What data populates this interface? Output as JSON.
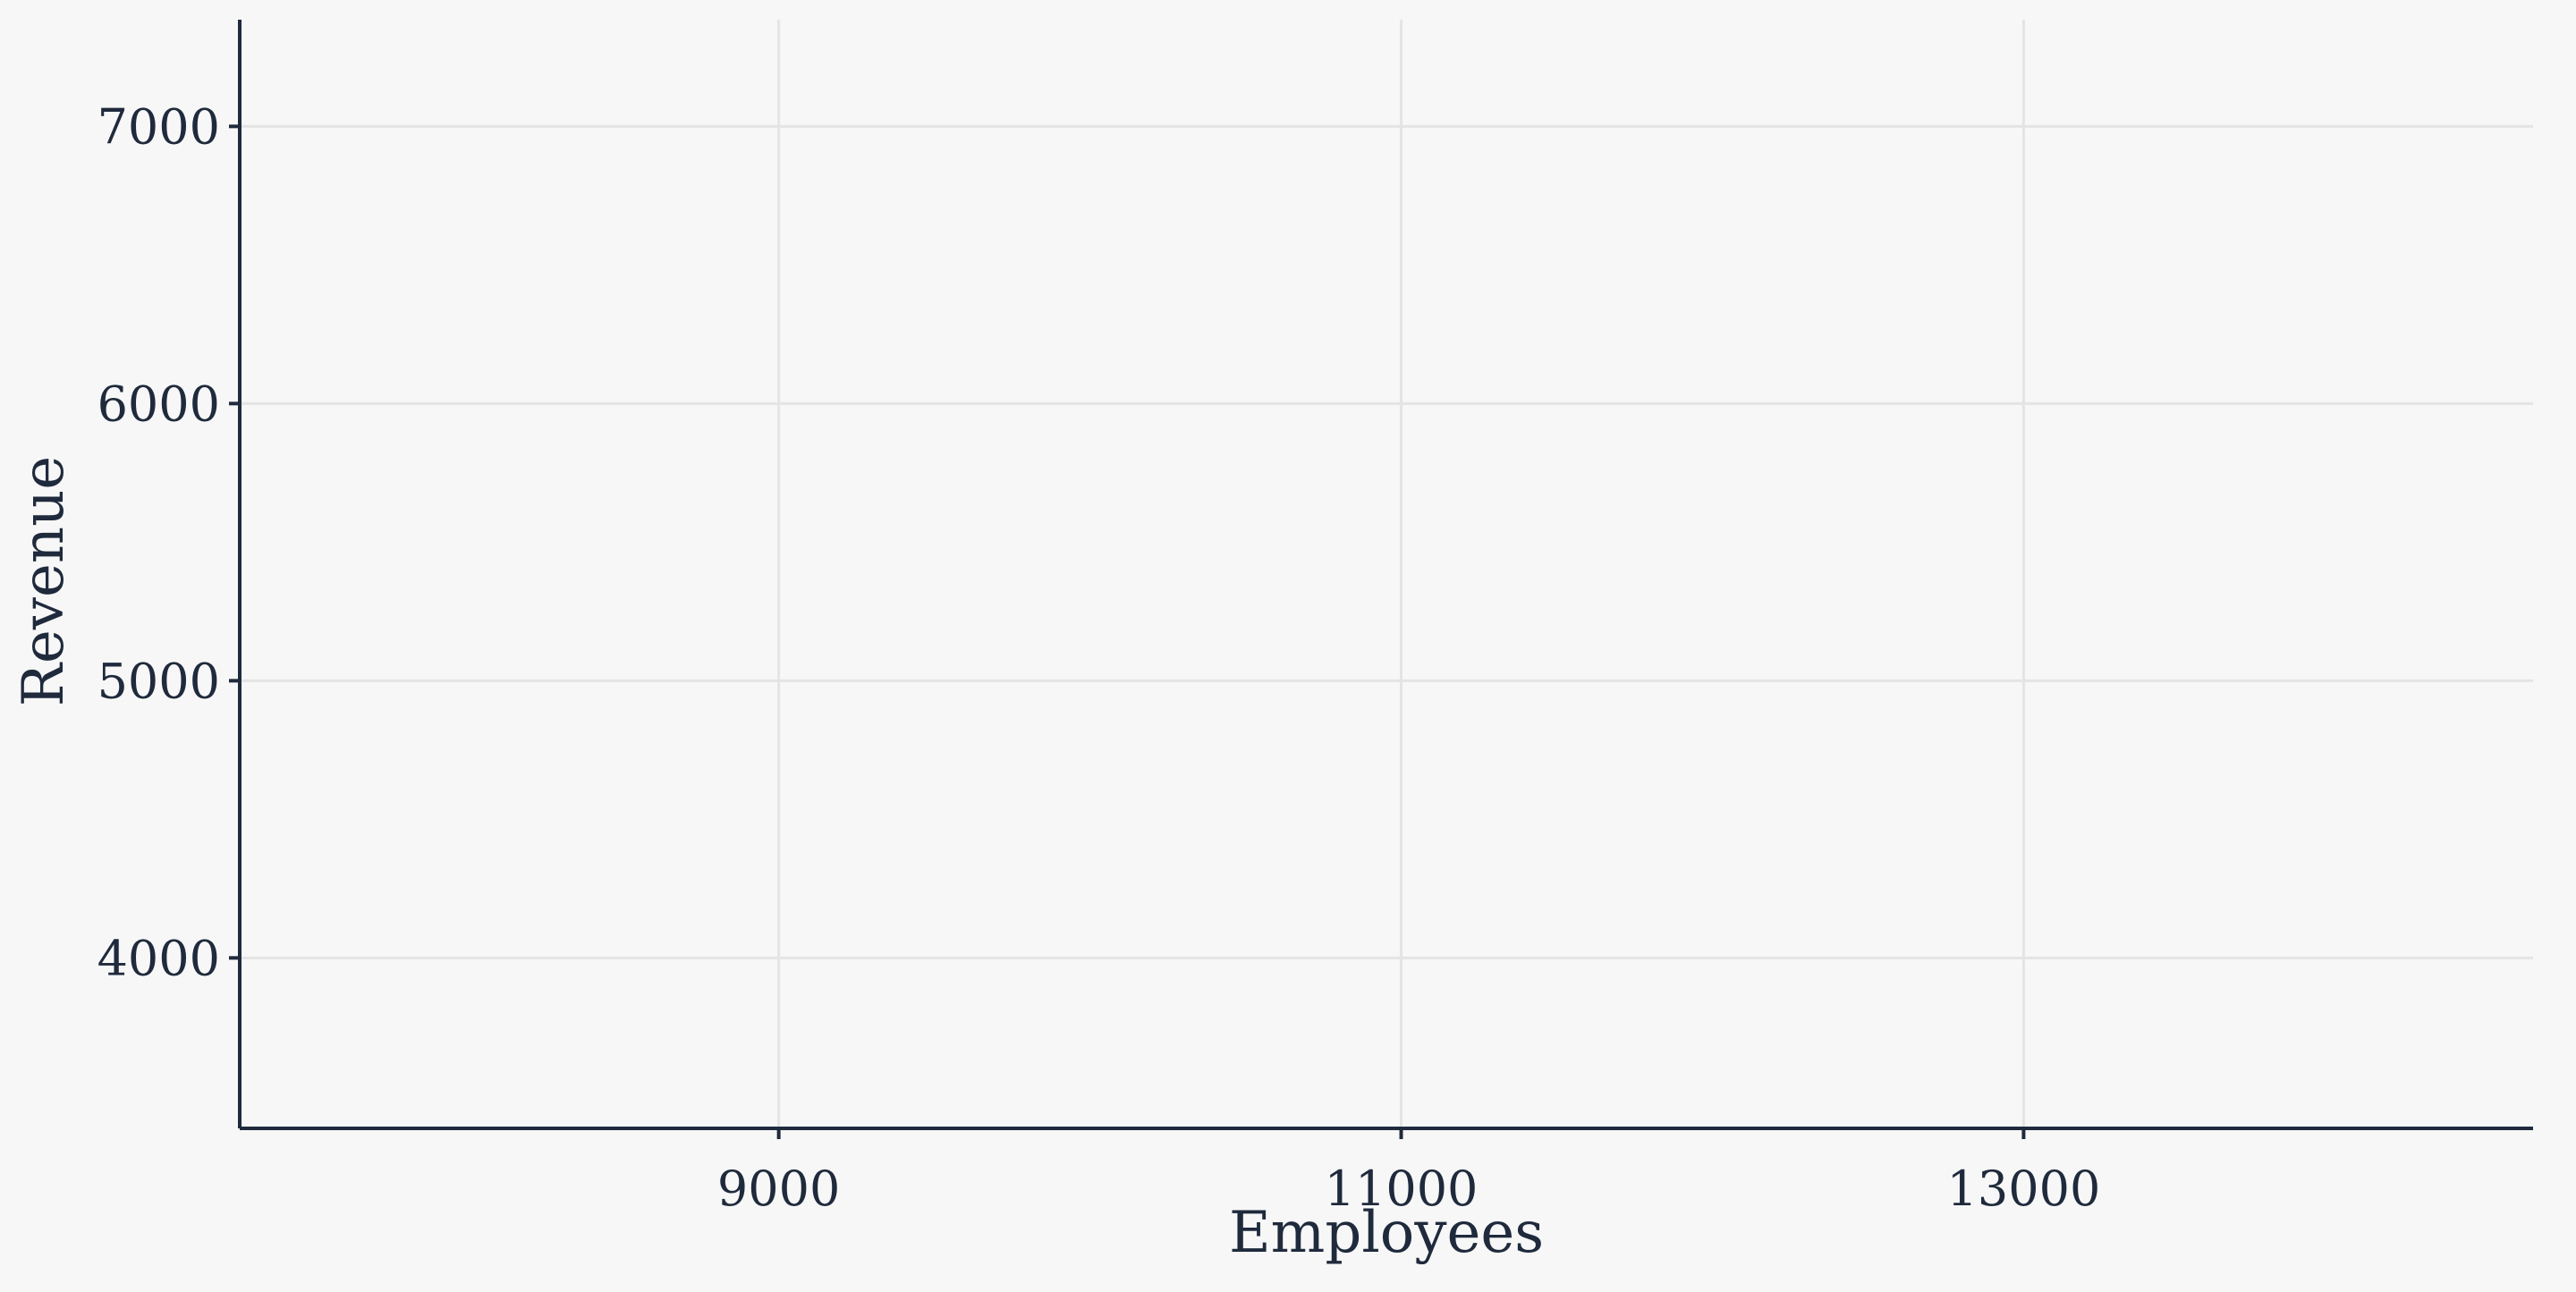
{
  "chart_data": {
    "type": "scatter",
    "title": "",
    "xlabel": "Employees",
    "ylabel": "Revenue",
    "xlim": [
      7268,
      14637
    ],
    "ylim": [
      3385,
      7385
    ],
    "x_ticks": [
      9000,
      11000,
      13000
    ],
    "y_ticks": [
      4000,
      5000,
      6000,
      7000
    ],
    "x_tick_labels": [
      "9000",
      "11000",
      "13000"
    ],
    "y_tick_labels": [
      "4000",
      "5000",
      "6000",
      "7000"
    ],
    "series": [
      {
        "x": [],
        "y": []
      }
    ],
    "grid": true,
    "legend": "none"
  },
  "colors": {
    "background": "#f7f7f7",
    "grid": "#e4e4e4",
    "axis": "#1f2a3c",
    "text": "#1f2a3c"
  }
}
